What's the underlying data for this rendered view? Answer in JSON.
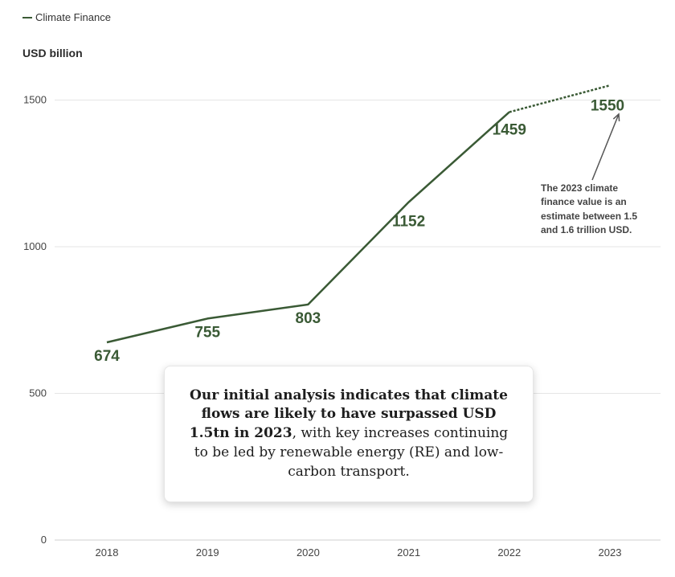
{
  "legend": {
    "label": "Climate Finance"
  },
  "colors": {
    "series": "#3a5a35",
    "grid": "#e5e5e5",
    "annotation": "#555555"
  },
  "chart_data": {
    "type": "line",
    "ylabel": "USD billion",
    "ylim": [
      0,
      1600
    ],
    "yticks": [
      0,
      500,
      1000,
      1500
    ],
    "grid": true,
    "legend_placement": "top-left",
    "categories": [
      "2018",
      "2019",
      "2020",
      "2021",
      "2022",
      "2023"
    ],
    "series": [
      {
        "name": "Climate Finance",
        "values": [
          674,
          755,
          803,
          1152,
          1459,
          1550
        ],
        "estimated_from": "2022",
        "data_labels": [
          "674",
          "755",
          "803",
          "1152",
          "1459",
          "1550"
        ]
      }
    ],
    "annotation": "The 2023 climate finance value is an estimate between 1.5 and 1.6 trillion USD."
  },
  "callout": {
    "bold": "Our initial analysis indicates that climate flows are likely to have surpassed USD 1.5tn in 2023",
    "rest": ", with key increases continuing to be led by renewable energy (RE) and low-carbon transport."
  }
}
